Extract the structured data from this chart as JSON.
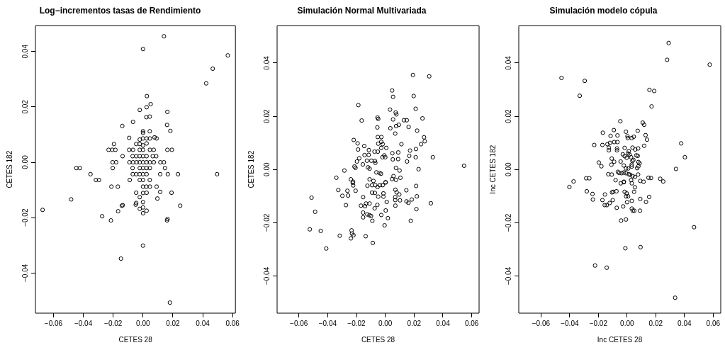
{
  "chart_data": [
    {
      "type": "scatter",
      "title": "Log−incrementos tasas de Rendimiento",
      "xlabel": "CETES 28",
      "ylabel": "CETES 182",
      "color": "#000000",
      "marker": "circle",
      "xlim": [
        -0.0721,
        0.0619
      ],
      "ylim": [
        -0.0545,
        0.0493
      ],
      "xticks": [
        {
          "value": -0.06,
          "label": "−0.06"
        },
        {
          "value": -0.04,
          "label": "−0.04"
        },
        {
          "value": -0.02,
          "label": "−0.02"
        },
        {
          "value": 0,
          "label": "0.00"
        },
        {
          "value": 0.02,
          "label": "0.02"
        },
        {
          "value": 0.04,
          "label": "0.04"
        },
        {
          "value": 0.06,
          "label": "0.06"
        }
      ],
      "yticks": [
        {
          "value": -0.04,
          "label": "−0.04"
        },
        {
          "value": -0.02,
          "label": "−0.02"
        },
        {
          "value": 0,
          "label": "0.00"
        },
        {
          "value": 0.02,
          "label": "0.02"
        },
        {
          "value": 0.04,
          "label": "0.04"
        }
      ],
      "x": [
        0.014,
        0,
        0.0568,
        0.0467,
        0.0423,
        0.0026,
        0.0051,
        -0.0022,
        0.0024,
        0.0163,
        0.0022,
        0.0045,
        -0.0139,
        -0.0067,
        0.0161,
        0.0183,
        0,
        0,
        0.0045,
        -0.0093,
        -0.0022,
        0,
        0.0024,
        0.0046,
        0.0077,
        0.0091,
        -0.0046,
        -0.0022,
        0,
        0.0024,
        -0.0195,
        -0.0231,
        -0.0207,
        -0.0185,
        -0.0093,
        -0.0067,
        -0.0022,
        0,
        0.0046,
        0.0072,
        0.0163,
        0.0193,
        -0.0137,
        -0.007,
        -0.0046,
        -0.0022,
        0,
        0.0024,
        0.0065,
        0.0088,
        -0.0204,
        -0.018,
        -0.0091,
        -0.0067,
        -0.0043,
        -0.0022,
        0,
        0.0024,
        0.0046,
        0.0072,
        0.0116,
        0.014,
        -0.0447,
        -0.0423,
        -0.0203,
        -0.007,
        -0.0022,
        0,
        0.0024,
        0.0046,
        0.0147,
        -0.0352,
        -0.0069,
        -0.0046,
        -0.0022,
        0,
        0.0024,
        0.0115,
        0.0166,
        0.0234,
        0.0496,
        -0.0316,
        -0.0295,
        -0.0089,
        -0.0022,
        0,
        0.0045,
        -0.0212,
        -0.0169,
        0,
        0.0022,
        0.0046,
        0.0091,
        -0.0046,
        0,
        0.0024,
        0.0115,
        0.0191,
        -0.0482,
        -0.0022,
        0.0096,
        -0.0046,
        -0.0049,
        0,
        -0.0142,
        -0.0136,
        -0.0673,
        -0.0167,
        -0.0022,
        0,
        0.0024,
        0,
        0.0249,
        -0.0274,
        -0.0215,
        0.0164,
        0.0161,
        0,
        -0.0148,
        0.018
      ],
      "values": [
        0.0455,
        0.0409,
        0.0386,
        0.0338,
        0.0285,
        0.0239,
        0.021,
        0.0189,
        0.0199,
        0.0182,
        0.0163,
        0.0165,
        0.0131,
        0.0146,
        0.0135,
        0.0113,
        0.0112,
        0.0106,
        0.0112,
        0.0088,
        0.0082,
        0.0086,
        0.0086,
        0.0086,
        0.009,
        0.0086,
        0.0066,
        0.0066,
        0.0061,
        0.0068,
        0.0066,
        0.0045,
        0.0045,
        0.0045,
        0.0045,
        0.0045,
        0.0045,
        0.0045,
        0.0045,
        0.0045,
        0.0045,
        0.0045,
        0.0022,
        0.0022,
        0.0022,
        0.0022,
        0.0022,
        0.0022,
        0.0022,
        0.0022,
        0,
        0,
        0,
        0,
        0,
        0,
        0,
        0,
        0,
        0,
        0,
        0,
        -0.0021,
        -0.0021,
        -0.0021,
        -0.0021,
        -0.0021,
        -0.0021,
        -0.0021,
        -0.0021,
        -0.0021,
        -0.0043,
        -0.0043,
        -0.0043,
        -0.0043,
        -0.0043,
        -0.0043,
        -0.0043,
        -0.0043,
        -0.0043,
        -0.0043,
        -0.0064,
        -0.0064,
        -0.0064,
        -0.0064,
        -0.0064,
        -0.0064,
        -0.0088,
        -0.0088,
        -0.0088,
        -0.0088,
        -0.0088,
        -0.0088,
        -0.011,
        -0.0111,
        -0.011,
        -0.0107,
        -0.011,
        -0.0134,
        -0.0126,
        -0.0131,
        -0.0147,
        -0.0153,
        -0.0144,
        -0.0157,
        -0.0155,
        -0.0172,
        -0.0177,
        -0.0168,
        -0.0163,
        -0.0175,
        -0.0184,
        -0.0157,
        -0.0195,
        -0.021,
        -0.0205,
        -0.021,
        -0.0301,
        -0.0348,
        -0.0507
      ]
    },
    {
      "type": "scatter",
      "title": "Simulación Normal Multivariada",
      "xlabel": "CETES 28",
      "ylabel": "CETES 182",
      "color": "#000000",
      "marker": "circle",
      "xlim": [
        -0.0751,
        0.0651
      ],
      "ylim": [
        -0.054,
        0.054
      ],
      "xticks": [
        {
          "value": -0.06,
          "label": "−0.06"
        },
        {
          "value": -0.04,
          "label": "−0.04"
        },
        {
          "value": -0.02,
          "label": "−0.02"
        },
        {
          "value": 0,
          "label": "0.00"
        },
        {
          "value": 0.02,
          "label": "0.02"
        },
        {
          "value": 0.04,
          "label": "0.04"
        },
        {
          "value": 0.06,
          "label": "0.06"
        }
      ],
      "yticks": [
        {
          "value": -0.04,
          "label": "−0.04"
        },
        {
          "value": -0.02,
          "label": "−0.02"
        },
        {
          "value": 0,
          "label": "0.00"
        },
        {
          "value": 0.02,
          "label": "0.02"
        },
        {
          "value": 0.04,
          "label": "0.04"
        }
      ],
      "x": [
        0.0192,
        0.0305,
        0.0047,
        0.0054,
        0.0197,
        -0.0187,
        0.0033,
        0.0211,
        0.0072,
        0.0077,
        -0.0164,
        -0.0054,
        -0.0049,
        0.0054,
        0.0129,
        0.0149,
        0.0258,
        0.0094,
        0.0075,
        0.0162,
        -0.0055,
        0.0035,
        0.0221,
        0.0069,
        -0.0052,
        -0.0027,
        0.0269,
        0.0274,
        -0.0219,
        -0.0192,
        -0.0028,
        -0.0049,
        -0.0018,
        0.0112,
        0.0248,
        -0.0146,
        0.0007,
        -0.0028,
        -0.0189,
        -0.0114,
        0.0213,
        -0.0075,
        -0.0052,
        0.0172,
        -0.0144,
        -0.0115,
        -0.0007,
        -0.002,
        0,
        0.0049,
        0.009,
        0.0166,
        0.0211,
        0.033,
        -0.0181,
        -0.0127,
        -0.0097,
        -0.0072,
        -0.0069,
        0.0052,
        0.0089,
        0.0151,
        -0.0197,
        -0.0156,
        -0.0214,
        -0.0207,
        -0.012,
        -0.0109,
        0.0074,
        0.0099,
        0.0231,
        0.0547,
        -0.0284,
        -0.0062,
        -0.004,
        -0.003,
        -0.034,
        -0.0239,
        -0.0224,
        -0.0109,
        -0.0082,
        0.0002,
        0.0057,
        0.0047,
        0.0074,
        0.0105,
        -0.0226,
        -0.0223,
        -0.0124,
        -0.0092,
        -0.0069,
        -0.0038,
        -0.0018,
        -0.0054,
        0.0002,
        0.0214,
        -0.0326,
        -0.0263,
        -0.0206,
        -0.0298,
        -0.0258,
        -0.0512,
        -0.0092,
        -0.0072,
        -0.0013,
        -0.0013,
        -0.0049,
        -0.0154,
        0.007,
        0.0079,
        0.0097,
        0.0069,
        0.0069,
        0.0102,
        0.0146,
        0.0147,
        0.0161,
        0.0184,
        0.0219,
        0.0316,
        -0.0273,
        -0.0169,
        -0.0141,
        -0.0134,
        -0.0109,
        -0.0055,
        0.001,
        0.007,
        -0.0074,
        -0.0487,
        -0.0154,
        -0.0154,
        -0.0125,
        -0.011,
        -0.0099,
        0.0003,
        -0.0028,
        0.0018,
        0.0216,
        -0.009,
        0.0177,
        -0.0005,
        -0.0524,
        -0.0448,
        -0.0316,
        -0.0234,
        -0.0231,
        -0.0221,
        -0.0239,
        -0.0136,
        -0.0087,
        -0.041
      ],
      "values": [
        0.0355,
        0.035,
        0.0297,
        0.0273,
        0.0276,
        0.0242,
        0.0225,
        0.0228,
        0.0214,
        0.0207,
        0.0184,
        0.0195,
        0.019,
        0.0188,
        0.0185,
        0.0185,
        0.0192,
        0.0168,
        0.0163,
        0.016,
        0.0158,
        0.0155,
        0.0146,
        0.0135,
        0.0122,
        0.0122,
        0.0121,
        0.0106,
        0.0111,
        0.0098,
        0.0104,
        0.0097,
        0.0095,
        0.0095,
        0.0095,
        0.0088,
        0.0081,
        0.0081,
        0.0075,
        0.0073,
        0.0077,
        0.0067,
        0.0067,
        0.0071,
        0.0054,
        0.0055,
        0.0053,
        0.0046,
        0.0046,
        0.0061,
        0.0064,
        0.0051,
        0.0046,
        0.0046,
        0.0042,
        0.0033,
        0.0033,
        0.0032,
        0.0025,
        0.0038,
        0.0039,
        0.003,
        0.003,
        0.0019,
        0.0011,
        0.0006,
        0.0008,
        0.0003,
        0.0006,
        -0.0004,
        0.0001,
        0.0014,
        -0.0004,
        -0.0011,
        -0.0013,
        -0.0016,
        -0.0031,
        -0.0037,
        -0.0046,
        -0.0037,
        -0.0043,
        -0.0048,
        -0.0025,
        -0.0036,
        -0.0039,
        -0.0031,
        -0.005,
        -0.006,
        -0.0061,
        -0.0059,
        -0.0059,
        -0.0059,
        -0.0059,
        -0.0066,
        -0.0049,
        -0.0062,
        -0.0077,
        -0.008,
        -0.008,
        -0.0099,
        -0.0098,
        -0.0106,
        -0.0087,
        -0.0088,
        -0.009,
        -0.0102,
        -0.0102,
        -0.0104,
        -0.0076,
        -0.0086,
        -0.0094,
        -0.0104,
        -0.0115,
        -0.0116,
        -0.0078,
        -0.012,
        -0.0125,
        -0.0113,
        -0.0101,
        -0.0127,
        -0.0134,
        -0.0136,
        -0.0138,
        -0.0128,
        -0.0128,
        -0.0133,
        -0.0122,
        -0.0136,
        -0.0146,
        -0.0159,
        -0.0162,
        -0.018,
        -0.0169,
        -0.0172,
        -0.0175,
        -0.0154,
        -0.0171,
        -0.0183,
        -0.0149,
        -0.0193,
        -0.0193,
        -0.021,
        -0.0225,
        -0.0231,
        -0.0249,
        -0.0229,
        -0.0241,
        -0.0247,
        -0.0259,
        -0.0251,
        -0.0276,
        -0.0297
      ]
    },
    {
      "type": "scatter",
      "title": "Simulación modelo cópula",
      "xlabel": "Inc CETES 28",
      "ylabel": "Inc CETES 182",
      "color": "#000000",
      "marker": "circle",
      "xlim": [
        -0.0755,
        0.0653
      ],
      "ylim": [
        -0.054,
        0.054
      ],
      "xticks": [
        {
          "value": -0.06,
          "label": "−0.06"
        },
        {
          "value": -0.04,
          "label": "−0.04"
        },
        {
          "value": -0.02,
          "label": "−0.02"
        },
        {
          "value": 0,
          "label": "0.00"
        },
        {
          "value": 0.02,
          "label": "0.02"
        },
        {
          "value": 0.04,
          "label": "0.04"
        },
        {
          "value": 0.06,
          "label": "0.06"
        }
      ],
      "yticks": [
        {
          "value": -0.04,
          "label": "−0.04"
        },
        {
          "value": -0.02,
          "label": "−0.02"
        },
        {
          "value": 0,
          "label": "0.00"
        },
        {
          "value": 0.02,
          "label": "0.02"
        },
        {
          "value": 0.04,
          "label": "0.04"
        }
      ],
      "x": [
        0.029,
        0.0279,
        0.0576,
        -0.0457,
        -0.0295,
        -0.033,
        0.0156,
        0.0189,
        0.0171,
        -0.0047,
        0.0109,
        0.0119,
        -0.0092,
        -0.0008,
        0.0074,
        -0.0169,
        -0.0115,
        -0.0067,
        0.0003,
        0.0005,
        0.0032,
        0.0047,
        0.0129,
        0.0139,
        0.0377,
        -0.0229,
        -0.0172,
        -0.0137,
        -0.0119,
        -0.009,
        -0.0067,
        0.0119,
        -0.0127,
        -0.0127,
        -0.007,
        -0.007,
        -0.0017,
        0.0012,
        0.0038,
        0.0057,
        0.0077,
        -0.003,
        -0.0017,
        0.0007,
        0.0017,
        0.0065,
        0.0074,
        0.0403,
        -0.0107,
        -0.009,
        -0.0045,
        -0.0003,
        0.0028,
        0.0037,
        0.0044,
        0.0079,
        0.0087,
        -0.0197,
        -0.0179,
        -0.0109,
        -0.0023,
        -0.0007,
        0.0008,
        0.0032,
        0.0032,
        0.007,
        0.0079,
        0.0341,
        -0.0064,
        -0.0055,
        -0.0037,
        -0.0022,
        -0.0007,
        -0.0131,
        -0.0107,
        0.0012,
        0.0022,
        0.0038,
        0.0055,
        0.0077,
        -0.0285,
        -0.0263,
        -0.0373,
        0.0149,
        0.0167,
        0.0231,
        0.0252,
        -0.008,
        -0.0022,
        0.0028,
        0.0092,
        0.0115,
        -0.0402,
        -0.0044,
        -0.0023,
        0.0033,
        -0.0281,
        -0.0241,
        -0.0238,
        -0.0154,
        -0.0105,
        -0.0097,
        -0.0074,
        -0.0017,
        -0.0003,
        -0.0007,
        0.0007,
        0.0055,
        0.0049,
        0.0092,
        0.0154,
        0.0132,
        -0.0172,
        -0.0156,
        -0.0141,
        -0.0121,
        -0.01,
        -0.0072,
        -0.0028,
        0,
        0.0033,
        0.0033,
        0.004,
        0.005,
        0.009,
        -0.0042,
        -0.0008,
        0.0467,
        -0.0012,
        0.0094,
        -0.0223,
        -0.0142,
        0.0335
      ],
      "values": [
        0.0475,
        0.0412,
        0.0394,
        0.0344,
        0.0333,
        0.0277,
        0.0299,
        0.0295,
        0.0237,
        0.0181,
        0.0176,
        0.0168,
        0.0148,
        0.0142,
        0.0145,
        0.0138,
        0.0126,
        0.0128,
        0.0125,
        0.0118,
        0.0118,
        0.0123,
        0.0129,
        0.0112,
        0.0098,
        0.0092,
        0.0092,
        0.0095,
        0.01,
        0.0103,
        0.0103,
        0.0089,
        0.0082,
        0.0072,
        0.0079,
        0.0072,
        0.0081,
        0.0069,
        0.0082,
        0.0075,
        0.0079,
        0.0057,
        0.005,
        0.006,
        0.0056,
        0.0053,
        0.0051,
        0.0046,
        0.0041,
        0.0029,
        0.003,
        0.0044,
        0.0046,
        0.0032,
        0.0036,
        0.0028,
        0.0023,
        0.0026,
        0.0012,
        0.0018,
        0.0015,
        0.0004,
        0.0004,
        0.0011,
        0.0018,
        0.0005,
        0.0012,
        0.0002,
        -0.0009,
        -0.0013,
        -0.0014,
        -0.0011,
        -0.0014,
        -0.0018,
        -0.0019,
        -0.0018,
        -0.002,
        -0.0025,
        -0.0028,
        -0.0019,
        -0.0033,
        -0.0033,
        -0.0045,
        -0.0031,
        -0.0032,
        -0.0035,
        -0.0045,
        -0.004,
        -0.0046,
        -0.004,
        -0.0043,
        -0.0046,
        -0.0066,
        -0.0052,
        -0.0048,
        -0.0052,
        -0.0082,
        -0.0092,
        -0.0113,
        -0.0094,
        -0.0086,
        -0.0084,
        -0.0082,
        -0.0084,
        -0.009,
        -0.0101,
        -0.0101,
        -0.0067,
        -0.0084,
        -0.0111,
        -0.0103,
        -0.0122,
        -0.0115,
        -0.0134,
        -0.0134,
        -0.0126,
        -0.0115,
        -0.0144,
        -0.0139,
        -0.0123,
        -0.0118,
        -0.0147,
        -0.0155,
        -0.0155,
        -0.0155,
        -0.0192,
        -0.0188,
        -0.0217,
        -0.0296,
        -0.0292,
        -0.0361,
        -0.0369,
        -0.0482
      ]
    }
  ]
}
